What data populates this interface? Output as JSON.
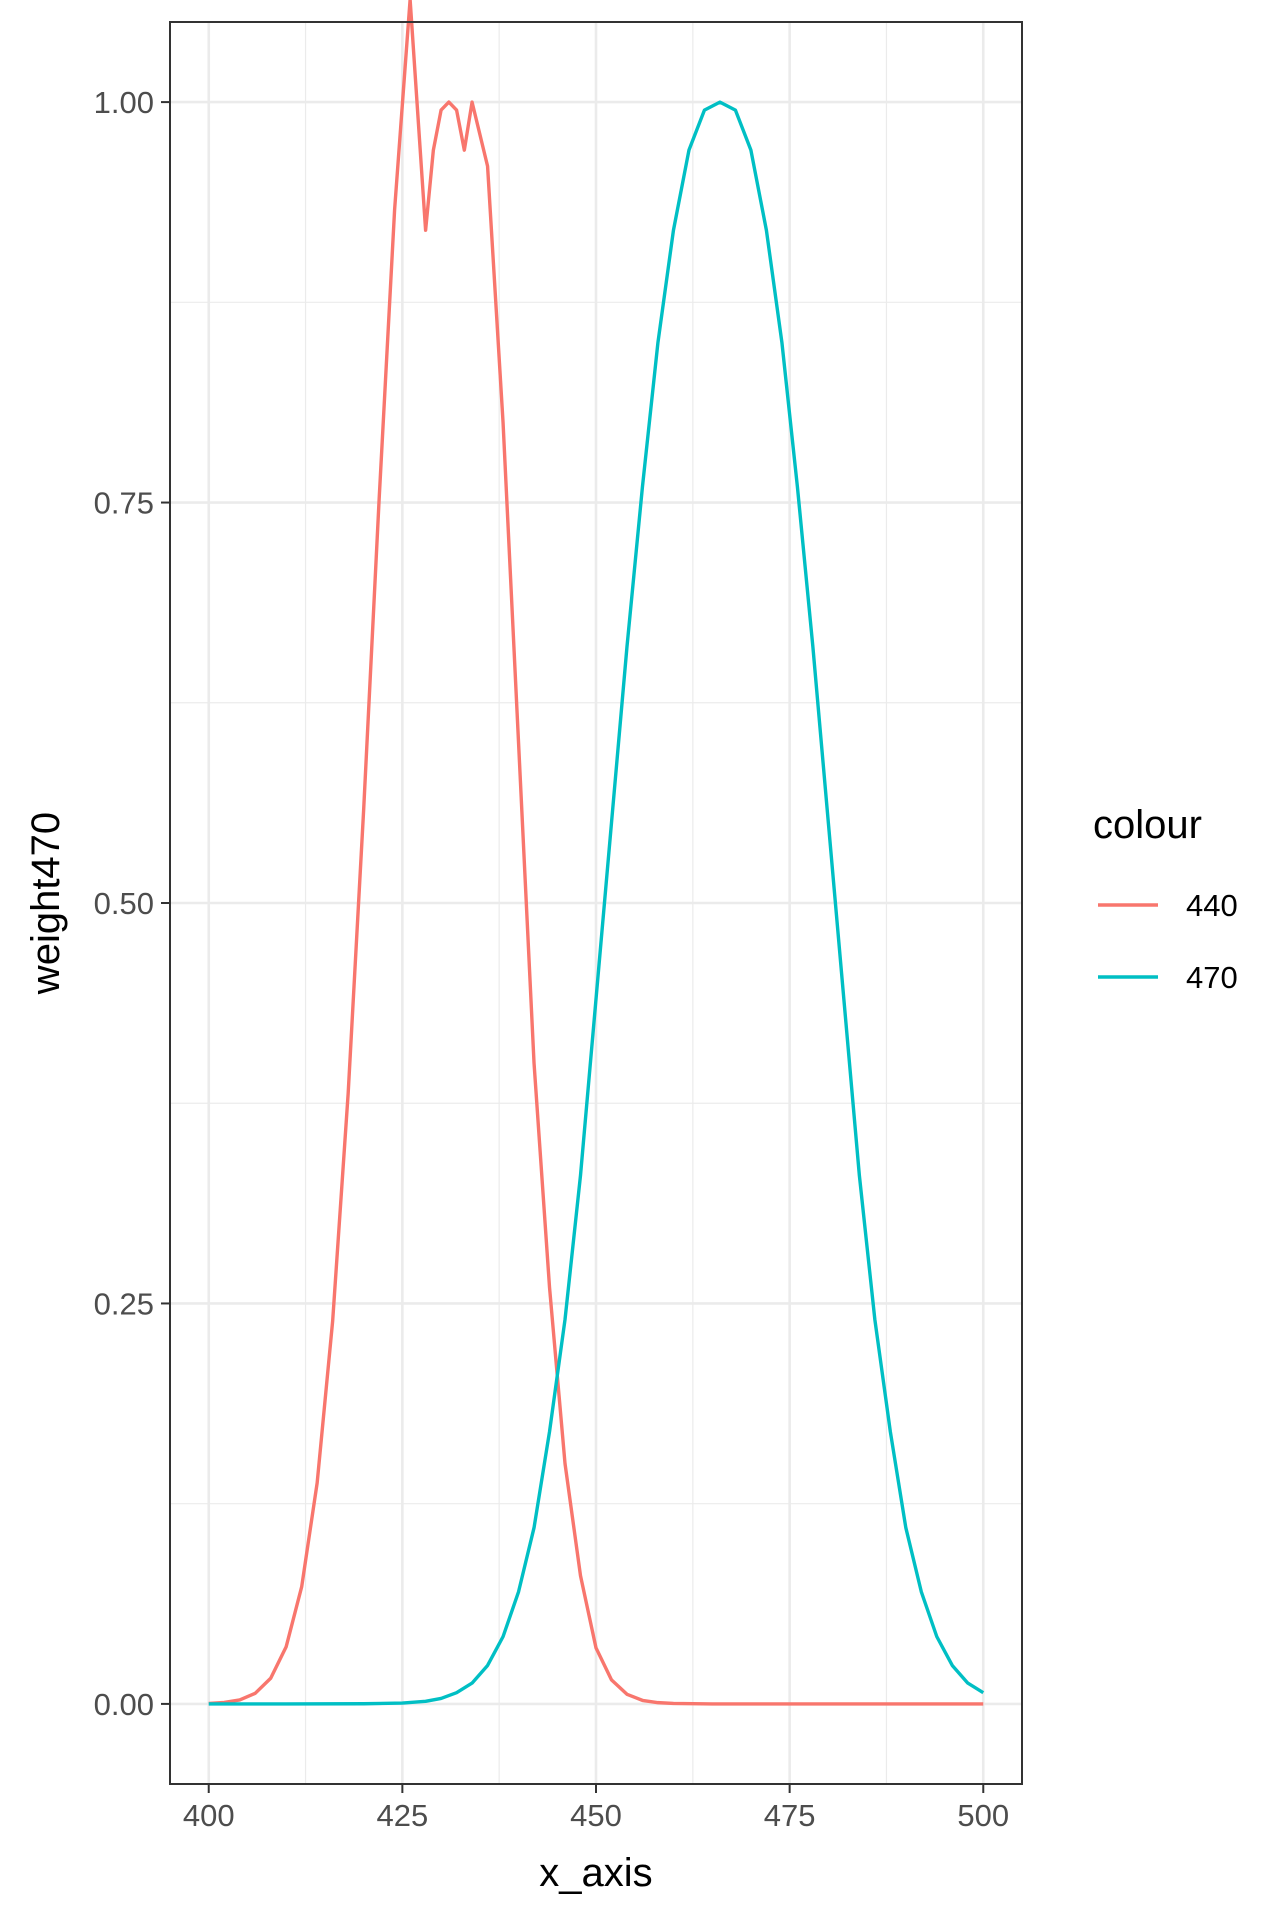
{
  "chart_data": {
    "type": "line",
    "title": "",
    "xlabel": "x_axis",
    "ylabel": "weight470",
    "xlim": [
      395,
      505
    ],
    "ylim": [
      -0.05,
      1.05
    ],
    "x_ticks": [
      "400",
      "425",
      "450",
      "475",
      "500"
    ],
    "y_ticks": [
      "0.00",
      "0.25",
      "0.50",
      "0.75",
      "1.00"
    ],
    "grid": true,
    "legend": {
      "title": "colour",
      "placement": "right"
    },
    "series": [
      {
        "name": "440",
        "color": "#F8766D",
        "points": [
          [
            400,
            0.0003
          ],
          [
            402,
            0.0009
          ],
          [
            404,
            0.0025
          ],
          [
            406,
            0.0066
          ],
          [
            408,
            0.016
          ],
          [
            410,
            0.0357
          ],
          [
            412,
            0.0731
          ],
          [
            414,
            0.138
          ],
          [
            416,
            0.239
          ],
          [
            418,
            0.381
          ],
          [
            420,
            0.558
          ],
          [
            422,
            0.752
          ],
          [
            424,
            0.933
          ],
          [
            426,
            1.064
          ],
          [
            428,
            0.92
          ],
          [
            429,
            0.97
          ],
          [
            430,
            0.995
          ],
          [
            431,
            1.0
          ],
          [
            432,
            0.995
          ],
          [
            433,
            0.97
          ],
          [
            434,
            1.0
          ],
          [
            436,
            0.96
          ],
          [
            438,
            0.8
          ],
          [
            440,
            0.6
          ],
          [
            442,
            0.4
          ],
          [
            444,
            0.26
          ],
          [
            446,
            0.15
          ],
          [
            448,
            0.08
          ],
          [
            450,
            0.035
          ],
          [
            452,
            0.015
          ],
          [
            454,
            0.006
          ],
          [
            456,
            0.0022
          ],
          [
            458,
            0.0008
          ],
          [
            460,
            0.0003
          ],
          [
            465,
            0.0
          ],
          [
            470,
            0.0
          ],
          [
            480,
            0.0
          ],
          [
            490,
            0.0
          ],
          [
            500,
            0.0
          ]
        ]
      },
      {
        "name": "470",
        "color": "#00BFC4",
        "points": [
          [
            400,
            0.0
          ],
          [
            410,
            0.0
          ],
          [
            420,
            0.0001
          ],
          [
            425,
            0.0005
          ],
          [
            428,
            0.0016
          ],
          [
            430,
            0.0034
          ],
          [
            432,
            0.007
          ],
          [
            434,
            0.013
          ],
          [
            436,
            0.024
          ],
          [
            438,
            0.042
          ],
          [
            440,
            0.07
          ],
          [
            442,
            0.11
          ],
          [
            444,
            0.17
          ],
          [
            446,
            0.24
          ],
          [
            448,
            0.33
          ],
          [
            450,
            0.44
          ],
          [
            452,
            0.55
          ],
          [
            454,
            0.66
          ],
          [
            456,
            0.76
          ],
          [
            458,
            0.85
          ],
          [
            460,
            0.92
          ],
          [
            462,
            0.97
          ],
          [
            464,
            0.995
          ],
          [
            466,
            1.0
          ],
          [
            468,
            0.995
          ],
          [
            470,
            0.97
          ],
          [
            472,
            0.92
          ],
          [
            474,
            0.85
          ],
          [
            476,
            0.76
          ],
          [
            478,
            0.66
          ],
          [
            480,
            0.55
          ],
          [
            482,
            0.44
          ],
          [
            484,
            0.33
          ],
          [
            486,
            0.24
          ],
          [
            488,
            0.17
          ],
          [
            490,
            0.11
          ],
          [
            492,
            0.07
          ],
          [
            494,
            0.042
          ],
          [
            496,
            0.024
          ],
          [
            498,
            0.013
          ],
          [
            500,
            0.007
          ]
        ]
      }
    ]
  }
}
